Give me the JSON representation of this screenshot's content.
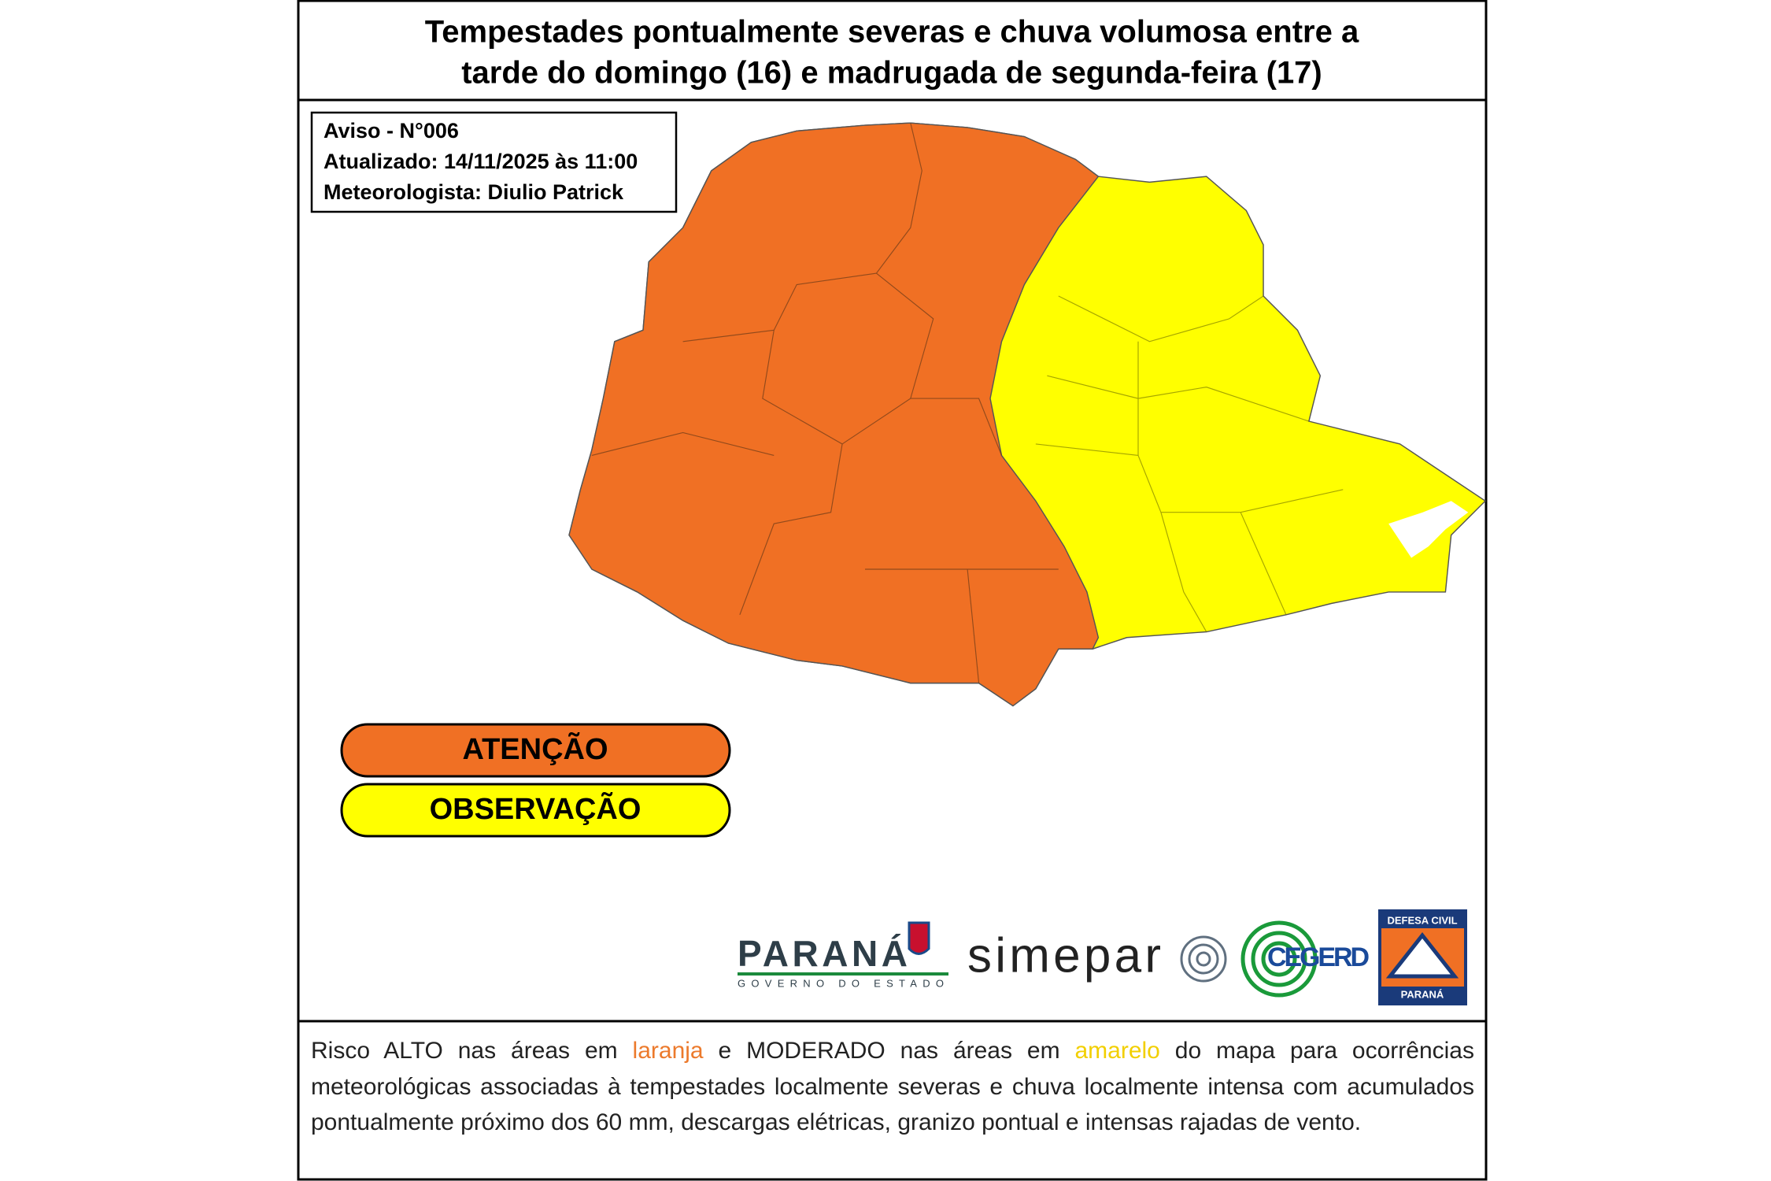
{
  "title_lines": [
    "Tempestades pontualmente severas e chuva volumosa entre a",
    "tarde do domingo (16) e madrugada de segunda-feira (17)"
  ],
  "warning": {
    "number": "Aviso - N°006",
    "updated": "Atualizado: 14/11/2025 às 11:00",
    "meteorologist": "Meteorologista: Diulio Patrick"
  },
  "legend": [
    "ATENÇÃO",
    "OBSERVAÇÃO"
  ],
  "logos": {
    "parana": "PARANÁ",
    "parana_sub": "GOVERNO DO ESTADO",
    "simepar": "simepar",
    "cegerd": "CEGERD",
    "defesa_civil_top": "DEFESA CIVIL",
    "defesa_civil_bottom": "PARANÁ"
  },
  "footer": {
    "text_parts": [
      "Risco ALTO nas áreas em ",
      "laranja",
      " e MODERADO nas áreas em ",
      "amarelo",
      " do mapa para ocorrências meteorológicas associadas à tempestades localmente severas e chuva localmente intensa com acumulados pontualmente próximo dos 60 mm, descargas elétricas, granizo pontual e intensas rajadas de vento."
    ]
  }
}
